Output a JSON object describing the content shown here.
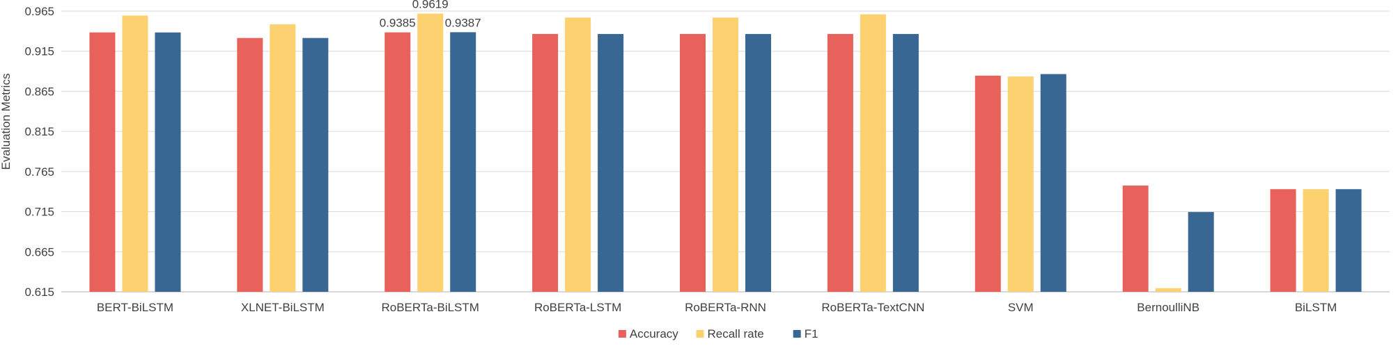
{
  "chart_data": {
    "type": "bar",
    "title": "",
    "xlabel": "",
    "ylabel": "Evaluation Metrics",
    "ylim": [
      0.615,
      0.965
    ],
    "yticks": [
      "0.615",
      "0.665",
      "0.715",
      "0.765",
      "0.815",
      "0.865",
      "0.915",
      "0.965"
    ],
    "grid": true,
    "legend_position": "bottom",
    "categories": [
      "BERT-BiLSTM",
      "XLNET-BiLSTM",
      "RoBERTa-BiLSTM",
      "RoBERTa-LSTM",
      "RoBERTa-RNN",
      "RoBERTa-TextCNN",
      "SVM",
      "BernoulliNB",
      "BiLSTM"
    ],
    "series": [
      {
        "name": "Accuracy",
        "color": "#e8615a",
        "values": [
          0.9384,
          0.9315,
          0.9385,
          0.9365,
          0.9365,
          0.9365,
          0.8845,
          0.7475,
          0.743
        ]
      },
      {
        "name": "Recall rate",
        "color": "#fdd16f",
        "values": [
          0.9595,
          0.9485,
          0.9619,
          0.957,
          0.957,
          0.961,
          0.8835,
          0.6195,
          0.743
        ]
      },
      {
        "name": "F1",
        "color": "#386794",
        "values": [
          0.9384,
          0.9315,
          0.9387,
          0.9365,
          0.9365,
          0.9365,
          0.8865,
          0.7145,
          0.743
        ]
      }
    ],
    "data_labels": [
      {
        "category": "RoBERTa-BiLSTM",
        "series": "Accuracy",
        "text": "0.9385"
      },
      {
        "category": "RoBERTa-BiLSTM",
        "series": "Recall rate",
        "text": "0.9619"
      },
      {
        "category": "RoBERTa-BiLSTM",
        "series": "F1",
        "text": "0.9387"
      }
    ]
  }
}
